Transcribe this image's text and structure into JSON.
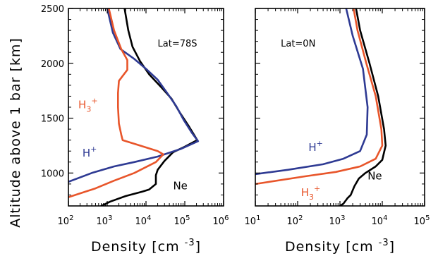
{
  "colors": {
    "ne": "#000000",
    "h_plus": "#2e3a93",
    "h3_plus": "#e8552a"
  },
  "chart_data": [
    {
      "type": "line",
      "annotation": "Lat=78S",
      "xlabel_main": "Density [cm",
      "xlabel_sup": "-3",
      "xlabel_tail": "]",
      "ylabel_main": "Altitude above 1 bar [km]",
      "xscale": "log",
      "xlim": [
        100,
        1000000
      ],
      "ylim": [
        700,
        2500
      ],
      "xticks": [
        {
          "value": 100,
          "label": "10",
          "exp": "2"
        },
        {
          "value": 1000,
          "label": "10",
          "exp": "3"
        },
        {
          "value": 10000,
          "label": "10",
          "exp": "4"
        },
        {
          "value": 100000,
          "label": "10",
          "exp": "5"
        },
        {
          "value": 1000000,
          "label": "10",
          "exp": "6"
        }
      ],
      "yticks": [
        1000,
        1500,
        2000,
        2500
      ],
      "series": [
        {
          "name": "Ne",
          "label": "Ne",
          "label_sup": "",
          "color_key": "ne",
          "points": [
            [
              2800,
              2500
            ],
            [
              3500,
              2300
            ],
            [
              4500,
              2150
            ],
            [
              7000,
              2020
            ],
            [
              12000,
              1900
            ],
            [
              25000,
              1780
            ],
            [
              45000,
              1680
            ],
            [
              75000,
              1550
            ],
            [
              130000,
              1420
            ],
            [
              210000,
              1300
            ],
            [
              100000,
              1240
            ],
            [
              50000,
              1190
            ],
            [
              30000,
              1110
            ],
            [
              20000,
              1030
            ],
            [
              18000,
              980
            ],
            [
              18000,
              900
            ],
            [
              12000,
              850
            ],
            [
              8000,
              830
            ],
            [
              3000,
              790
            ],
            [
              1200,
              740
            ],
            [
              700,
              700
            ]
          ]
        },
        {
          "name": "H+",
          "label": "H",
          "label_sup": "+",
          "color_key": "h_plus",
          "points": [
            [
              1000,
              2500
            ],
            [
              1400,
              2280
            ],
            [
              2200,
              2130
            ],
            [
              5000,
              2040
            ],
            [
              10000,
              1950
            ],
            [
              20000,
              1850
            ],
            [
              35000,
              1730
            ],
            [
              60000,
              1610
            ],
            [
              95000,
              1480
            ],
            [
              150000,
              1370
            ],
            [
              220000,
              1290
            ],
            [
              80000,
              1220
            ],
            [
              20000,
              1150
            ],
            [
              5000,
              1100
            ],
            [
              1500,
              1060
            ],
            [
              400,
              1000
            ],
            [
              100,
              920
            ]
          ]
        },
        {
          "name": "H3+",
          "label": "H",
          "label_sub": "3",
          "label_sup": "+",
          "color_key": "h3_plus",
          "points": [
            [
              1100,
              2500
            ],
            [
              1500,
              2300
            ],
            [
              2300,
              2130
            ],
            [
              3300,
              2030
            ],
            [
              3300,
              1940
            ],
            [
              2000,
              1840
            ],
            [
              1900,
              1730
            ],
            [
              1900,
              1600
            ],
            [
              2000,
              1450
            ],
            [
              2300,
              1350
            ],
            [
              2500,
              1300
            ],
            [
              7000,
              1250
            ],
            [
              20000,
              1200
            ],
            [
              28000,
              1170
            ],
            [
              18000,
              1100
            ],
            [
              5000,
              1000
            ],
            [
              1500,
              930
            ],
            [
              500,
              860
            ],
            [
              100,
              780
            ]
          ]
        }
      ],
      "series_labels": {
        "ne": {
          "x": 50000,
          "y": 850
        },
        "h_plus": {
          "x": 230,
          "y": 1150
        },
        "h3_plus": {
          "x": 180,
          "y": 1590
        }
      },
      "annotation_pos": {
        "x": 20000,
        "y": 2230
      }
    },
    {
      "type": "line",
      "annotation": "Lat=0N",
      "xlabel_main": "Density [cm",
      "xlabel_sup": "-3",
      "xlabel_tail": "]",
      "xscale": "log",
      "xlim": [
        10,
        100000
      ],
      "ylim": [
        700,
        2500
      ],
      "xticks": [
        {
          "value": 10,
          "label": "10",
          "exp": "1"
        },
        {
          "value": 100,
          "label": "10",
          "exp": "2"
        },
        {
          "value": 1000,
          "label": "10",
          "exp": "3"
        },
        {
          "value": 10000,
          "label": "10",
          "exp": "4"
        },
        {
          "value": 100000,
          "label": "10",
          "exp": "5"
        }
      ],
      "yticks": [
        1000,
        1500,
        2000,
        2500
      ],
      "series": [
        {
          "name": "Ne",
          "label": "Ne",
          "label_sup": "",
          "color_key": "ne",
          "points": [
            [
              2400,
              2500
            ],
            [
              3000,
              2300
            ],
            [
              5000,
              2000
            ],
            [
              8000,
              1700
            ],
            [
              11000,
              1400
            ],
            [
              12000,
              1250
            ],
            [
              10000,
              1120
            ],
            [
              7000,
              1060
            ],
            [
              4000,
              1000
            ],
            [
              2800,
              950
            ],
            [
              2200,
              880
            ],
            [
              1800,
              800
            ],
            [
              1500,
              770
            ],
            [
              1200,
              720
            ],
            [
              1000,
              700
            ]
          ]
        },
        {
          "name": "H+",
          "label": "H",
          "label_sup": "+",
          "color_key": "h_plus",
          "points": [
            [
              1400,
              2500
            ],
            [
              2000,
              2250
            ],
            [
              3500,
              1950
            ],
            [
              4500,
              1600
            ],
            [
              4300,
              1350
            ],
            [
              3000,
              1200
            ],
            [
              1200,
              1130
            ],
            [
              400,
              1080
            ],
            [
              60,
              1030
            ],
            [
              10,
              990
            ]
          ]
        },
        {
          "name": "H3+",
          "label": "H",
          "label_sub": "3",
          "label_sup": "+",
          "color_key": "h3_plus",
          "points": [
            [
              2100,
              2500
            ],
            [
              2600,
              2300
            ],
            [
              4200,
              2000
            ],
            [
              7000,
              1700
            ],
            [
              9500,
              1400
            ],
            [
              10000,
              1250
            ],
            [
              7000,
              1130
            ],
            [
              3000,
              1060
            ],
            [
              800,
              1010
            ],
            [
              150,
              970
            ],
            [
              10,
              900
            ]
          ]
        }
      ],
      "series_labels": {
        "ne": {
          "x": 4500,
          "y": 940
        },
        "h_plus": {
          "x": 180,
          "y": 1200
        },
        "h3_plus": {
          "x": 120,
          "y": 790
        }
      },
      "annotation_pos": {
        "x": 40,
        "y": 2230
      }
    }
  ]
}
